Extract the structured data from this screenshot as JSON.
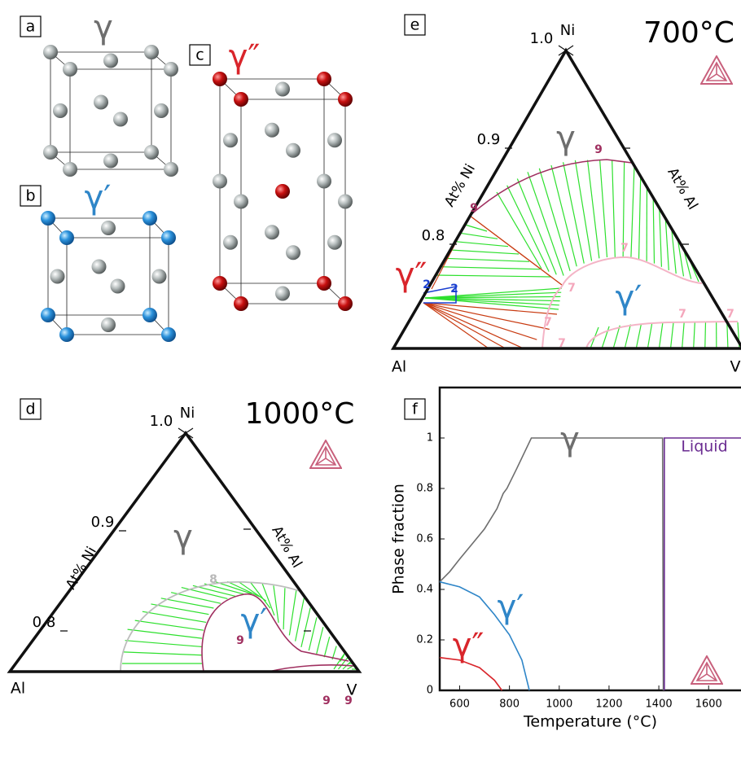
{
  "panels": {
    "a": {
      "label": "a",
      "phase": "γ"
    },
    "b": {
      "label": "b",
      "phase": "γ′"
    },
    "c": {
      "label": "c",
      "phase": "γ″"
    },
    "d": {
      "label": "d",
      "temperature": "1000°C",
      "apex": "Ni",
      "apex_tick": "1.0",
      "ticks": [
        "0.9",
        "0.8"
      ],
      "axis_left": "At% Ni",
      "axis_right": "At% Al",
      "vertices": [
        "Al",
        "V"
      ],
      "phases": [
        "γ",
        "γ′"
      ],
      "contour_labels": [
        "8",
        "9",
        "9",
        "9"
      ]
    },
    "e": {
      "label": "e",
      "temperature": "700°C",
      "apex": "Ni",
      "apex_tick": "1.0",
      "ticks": [
        "0.9",
        "0.8"
      ],
      "axis_left": "At% Ni",
      "axis_right": "At% Al",
      "vertices": [
        "Al",
        "V"
      ],
      "phases": [
        "γ",
        "γ′",
        "γ″"
      ],
      "contour_labels": [
        "9",
        "9",
        "7",
        "7",
        "7",
        "7",
        "7",
        "7",
        "2",
        "2"
      ]
    },
    "f": {
      "label": "f"
    }
  },
  "chart_data": {
    "type": "line",
    "xlabel": "Temperature (°C)",
    "ylabel": "Phase fraction",
    "xlim": [
      520,
      1730
    ],
    "ylim": [
      0,
      1.2
    ],
    "xticks": [
      600,
      800,
      1000,
      1200,
      1400,
      1600
    ],
    "yticks": [
      0,
      0.2,
      0.4,
      0.6,
      0.8,
      1
    ],
    "series": [
      {
        "name": "γ",
        "color": "#6e6e6e",
        "x": [
          520,
          560,
          600,
          650,
          700,
          750,
          775,
          790,
          830,
          888,
          1415,
          1418
        ],
        "values": [
          0.43,
          0.47,
          0.52,
          0.58,
          0.64,
          0.72,
          0.78,
          0.8,
          0.88,
          1,
          1,
          0
        ]
      },
      {
        "name": "Liquid",
        "color": "#6a2c91",
        "x": [
          1422,
          1422,
          1730
        ],
        "values": [
          0,
          1,
          1
        ]
      },
      {
        "name": "γ′",
        "color": "#2f86c8",
        "x": [
          520,
          600,
          680,
          740,
          800,
          850,
          880
        ],
        "values": [
          0.43,
          0.41,
          0.37,
          0.3,
          0.22,
          0.12,
          0
        ]
      },
      {
        "name": "γ″",
        "color": "#d9252b",
        "x": [
          520,
          600,
          680,
          740,
          770
        ],
        "values": [
          0.13,
          0.12,
          0.09,
          0.04,
          0
        ]
      }
    ]
  }
}
